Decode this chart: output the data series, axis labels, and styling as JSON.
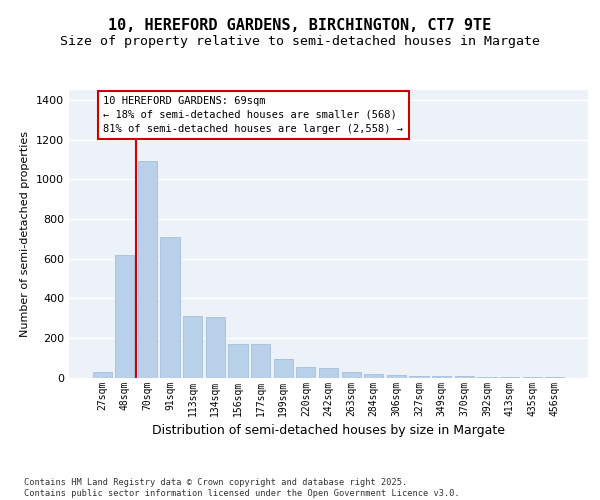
{
  "title_line1": "10, HEREFORD GARDENS, BIRCHINGTON, CT7 9TE",
  "title_line2": "Size of property relative to semi-detached houses in Margate",
  "xlabel": "Distribution of semi-detached houses by size in Margate",
  "ylabel": "Number of semi-detached properties",
  "categories": [
    "27sqm",
    "48sqm",
    "70sqm",
    "91sqm",
    "113sqm",
    "134sqm",
    "156sqm",
    "177sqm",
    "199sqm",
    "220sqm",
    "242sqm",
    "263sqm",
    "284sqm",
    "306sqm",
    "327sqm",
    "349sqm",
    "370sqm",
    "392sqm",
    "413sqm",
    "435sqm",
    "456sqm"
  ],
  "values": [
    30,
    620,
    1090,
    710,
    310,
    305,
    170,
    170,
    95,
    55,
    48,
    28,
    18,
    12,
    8,
    8,
    6,
    4,
    3,
    2,
    1
  ],
  "bar_color": "#b8d0ea",
  "bar_edge_color": "#9ab8d8",
  "annotation_text": "10 HEREFORD GARDENS: 69sqm\n← 18% of semi-detached houses are smaller (568)\n81% of semi-detached houses are larger (2,558) →",
  "vline_color": "#cc0000",
  "ylim": [
    0,
    1450
  ],
  "yticks": [
    0,
    200,
    400,
    600,
    800,
    1000,
    1200,
    1400
  ],
  "background_color": "#edf2f9",
  "grid_color": "#ffffff",
  "footer_text": "Contains HM Land Registry data © Crown copyright and database right 2025.\nContains public sector information licensed under the Open Government Licence v3.0."
}
